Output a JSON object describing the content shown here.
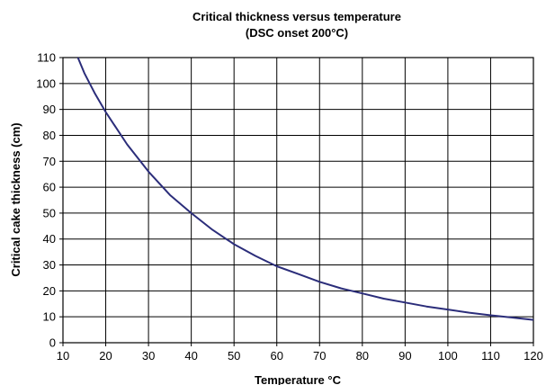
{
  "chart_data": {
    "type": "line",
    "title": "Critical thickness versus temperature",
    "subtitle": "(DSC onset 200°C)",
    "xlabel": "Temperature °C",
    "ylabel": "Critical cake thickness (cm)",
    "xlim": [
      10,
      120
    ],
    "ylim": [
      0,
      110
    ],
    "x_ticks": [
      10,
      20,
      30,
      40,
      50,
      60,
      70,
      80,
      90,
      100,
      110,
      120
    ],
    "y_ticks": [
      0,
      10,
      20,
      30,
      40,
      50,
      60,
      70,
      80,
      90,
      100,
      110
    ],
    "grid": true,
    "legend": "none",
    "series": [
      {
        "color": "#2b2d7a",
        "x": [
          13.5,
          15,
          17.5,
          20,
          25,
          30,
          35,
          40,
          45,
          50,
          55,
          60,
          65,
          70,
          75,
          80,
          85,
          90,
          95,
          100,
          105,
          110,
          115,
          120
        ],
        "y": [
          110,
          104,
          96,
          89,
          76.5,
          66,
          57,
          50,
          43.5,
          38,
          33.5,
          29.5,
          26.5,
          23.5,
          21,
          19,
          17,
          15.5,
          14,
          12.8,
          11.6,
          10.6,
          9.7,
          8.8
        ]
      }
    ]
  }
}
